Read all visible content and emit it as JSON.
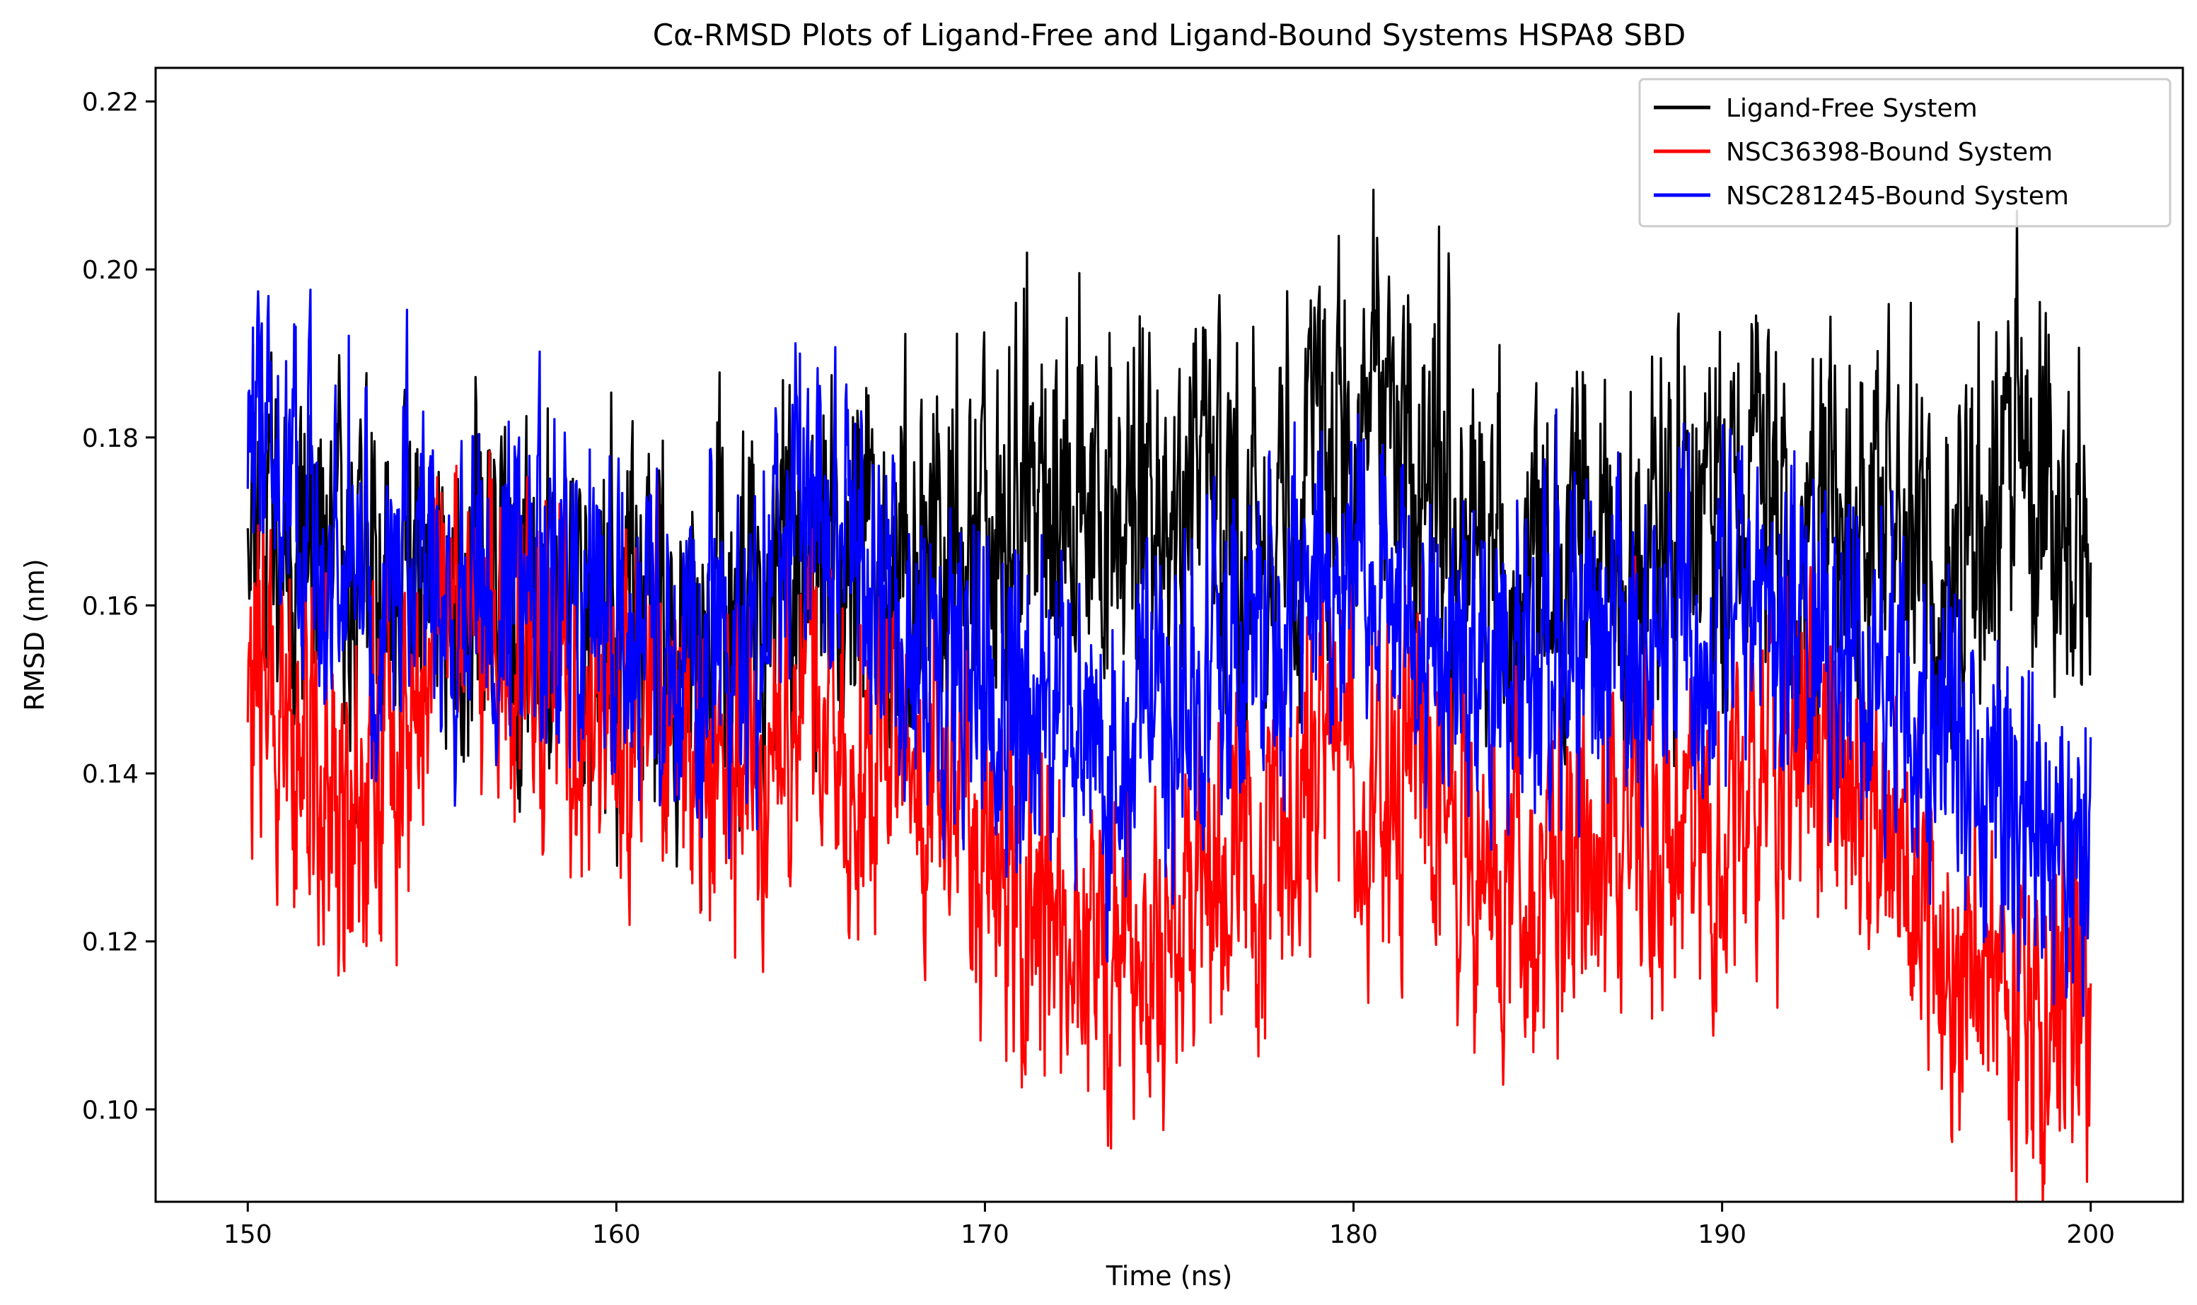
{
  "chart_data": {
    "type": "line",
    "title": "Cα-RMSD Plots of Ligand-Free and Ligand-Bound Systems HSPA8 SBD",
    "xlabel": "Time (ns)",
    "ylabel": "RMSD (nm)",
    "xlim": [
      147.5,
      202.5
    ],
    "ylim": [
      0.089,
      0.224
    ],
    "xticks": [
      150,
      160,
      170,
      180,
      190,
      200
    ],
    "xtick_labels": [
      "150",
      "160",
      "170",
      "180",
      "190",
      "200"
    ],
    "yticks": [
      0.1,
      0.12,
      0.14,
      0.16,
      0.18,
      0.2,
      0.22
    ],
    "ytick_labels": [
      "0.10",
      "0.12",
      "0.14",
      "0.16",
      "0.18",
      "0.20",
      "0.22"
    ],
    "legend_position": "top-right",
    "grid": false,
    "series": [
      {
        "name": "Ligand-Free System",
        "color": "#000000",
        "x": [
          150,
          151,
          152,
          153,
          154,
          155,
          156,
          157,
          158,
          159,
          160,
          161,
          162,
          163,
          164,
          165,
          166,
          167,
          168,
          169,
          170,
          171,
          172,
          173,
          174,
          175,
          176,
          177,
          178,
          179,
          180,
          181,
          182,
          183,
          184,
          185,
          186,
          187,
          188,
          189,
          190,
          191,
          192,
          193,
          194,
          195,
          196,
          197,
          198,
          199,
          200
        ],
        "mean": [
          0.18,
          0.172,
          0.165,
          0.163,
          0.161,
          0.162,
          0.163,
          0.16,
          0.158,
          0.157,
          0.16,
          0.158,
          0.156,
          0.156,
          0.158,
          0.164,
          0.166,
          0.165,
          0.164,
          0.166,
          0.168,
          0.172,
          0.174,
          0.172,
          0.17,
          0.168,
          0.168,
          0.17,
          0.171,
          0.178,
          0.182,
          0.182,
          0.176,
          0.17,
          0.166,
          0.16,
          0.162,
          0.165,
          0.168,
          0.17,
          0.17,
          0.172,
          0.17,
          0.17,
          0.172,
          0.168,
          0.166,
          0.172,
          0.18,
          0.17,
          0.168
        ],
        "spread": 0.015
      },
      {
        "name": "NSC36398-Bound System",
        "color": "#ff0000",
        "x": [
          150,
          151,
          152,
          153,
          154,
          155,
          156,
          157,
          158,
          159,
          160,
          161,
          162,
          163,
          164,
          165,
          166,
          167,
          168,
          169,
          170,
          171,
          172,
          173,
          174,
          175,
          176,
          177,
          178,
          179,
          180,
          181,
          182,
          183,
          184,
          185,
          186,
          187,
          188,
          189,
          190,
          191,
          192,
          193,
          194,
          195,
          196,
          197,
          198,
          199,
          200
        ],
        "mean": [
          0.148,
          0.148,
          0.14,
          0.136,
          0.145,
          0.158,
          0.158,
          0.155,
          0.15,
          0.146,
          0.145,
          0.15,
          0.14,
          0.138,
          0.14,
          0.148,
          0.142,
          0.14,
          0.14,
          0.138,
          0.134,
          0.126,
          0.12,
          0.118,
          0.122,
          0.118,
          0.128,
          0.134,
          0.13,
          0.142,
          0.14,
          0.138,
          0.134,
          0.132,
          0.125,
          0.128,
          0.13,
          0.132,
          0.128,
          0.13,
          0.132,
          0.138,
          0.14,
          0.138,
          0.134,
          0.128,
          0.122,
          0.114,
          0.112,
          0.114,
          0.116
        ],
        "spread": 0.014
      },
      {
        "name": "NSC281245-Bound System",
        "color": "#0000ff",
        "x": [
          150,
          151,
          152,
          153,
          154,
          155,
          156,
          157,
          158,
          159,
          160,
          161,
          162,
          163,
          164,
          165,
          166,
          167,
          168,
          169,
          170,
          171,
          172,
          173,
          174,
          175,
          176,
          177,
          178,
          179,
          180,
          181,
          182,
          183,
          184,
          185,
          186,
          187,
          188,
          189,
          190,
          191,
          192,
          193,
          194,
          195,
          196,
          197,
          198,
          199,
          200
        ],
        "mean": [
          0.18,
          0.178,
          0.168,
          0.165,
          0.16,
          0.163,
          0.162,
          0.162,
          0.16,
          0.16,
          0.158,
          0.155,
          0.156,
          0.155,
          0.158,
          0.172,
          0.17,
          0.165,
          0.16,
          0.152,
          0.148,
          0.146,
          0.146,
          0.148,
          0.147,
          0.146,
          0.15,
          0.152,
          0.158,
          0.166,
          0.165,
          0.162,
          0.158,
          0.154,
          0.15,
          0.15,
          0.154,
          0.156,
          0.156,
          0.158,
          0.16,
          0.158,
          0.155,
          0.155,
          0.155,
          0.15,
          0.142,
          0.136,
          0.134,
          0.132,
          0.132
        ],
        "spread": 0.014
      }
    ]
  }
}
